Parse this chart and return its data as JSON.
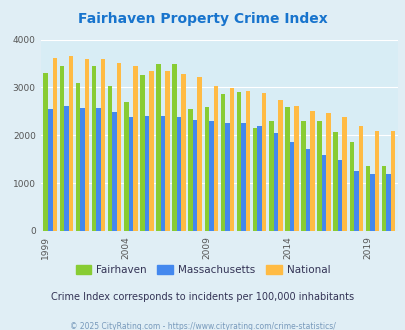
{
  "title": "Fairhaven Property Crime Index",
  "title_color": "#1874CD",
  "subtitle": "Crime Index corresponds to incidents per 100,000 inhabitants",
  "subtitle_color": "#333355",
  "copyright": "© 2025 CityRating.com - https://www.cityrating.com/crime-statistics/",
  "copyright_color": "#7799BB",
  "years": [
    1999,
    2000,
    2001,
    2002,
    2003,
    2004,
    2005,
    2006,
    2007,
    2008,
    2009,
    2010,
    2011,
    2012,
    2013,
    2014,
    2015,
    2016,
    2017,
    2018,
    2019,
    2020
  ],
  "fairhaven": [
    3300,
    3450,
    3100,
    3450,
    3020,
    2700,
    3250,
    3500,
    3480,
    2560,
    2600,
    2860,
    2900,
    2150,
    2300,
    2600,
    2300,
    2300,
    2070,
    1850,
    1350,
    1350
  ],
  "massachusetts": [
    2560,
    2620,
    2580,
    2580,
    2480,
    2380,
    2400,
    2400,
    2380,
    2320,
    2300,
    2250,
    2260,
    2200,
    2040,
    1870,
    1710,
    1580,
    1480,
    1260,
    1200,
    1200
  ],
  "national": [
    3620,
    3650,
    3600,
    3600,
    3510,
    3450,
    3340,
    3350,
    3280,
    3220,
    3040,
    2980,
    2920,
    2880,
    2730,
    2620,
    2510,
    2470,
    2390,
    2190,
    2080,
    2080
  ],
  "fairhaven_color": "#88CC33",
  "massachusetts_color": "#4488EE",
  "national_color": "#FFBB44",
  "bg_color": "#E0EEF5",
  "plot_bg_color": "#D8EDF5",
  "ylim": [
    0,
    4000
  ],
  "yticks": [
    0,
    1000,
    2000,
    3000,
    4000
  ],
  "bar_width": 0.28,
  "figsize": [
    4.06,
    3.3
  ],
  "dpi": 100
}
